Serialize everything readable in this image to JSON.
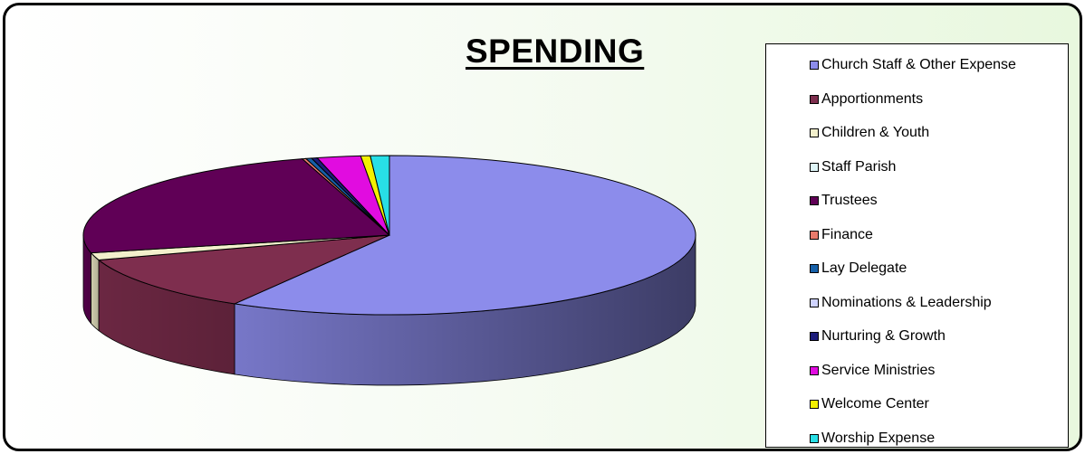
{
  "chart_data": {
    "type": "pie",
    "style": "3d-pie",
    "title": "SPENDING",
    "legend_position": "right",
    "slices": [
      {
        "label": "Church Staff & Other Expense",
        "value": 58.5,
        "color": "#8c8ceb"
      },
      {
        "label": "Apportionments",
        "value": 11.5,
        "color": "#7e2e4e"
      },
      {
        "label": "Children & Youth",
        "value": 1.5,
        "color": "#f3f0cc"
      },
      {
        "label": "Staff Parish",
        "value": 0.0,
        "color": "#dff6f8"
      },
      {
        "label": "Trustees",
        "value": 24.0,
        "color": "#600056"
      },
      {
        "label": "Finance",
        "value": 0.2,
        "color": "#e87b6c"
      },
      {
        "label": "Lay Delegate",
        "value": 0.3,
        "color": "#1660a8"
      },
      {
        "label": "Nominations & Leadership",
        "value": 0.0,
        "color": "#cfd3ff"
      },
      {
        "label": "Nurturing & Growth",
        "value": 0.3,
        "color": "#1c1c7a"
      },
      {
        "label": "Service Ministries",
        "value": 2.3,
        "color": "#e10ce0"
      },
      {
        "label": "Welcome Center",
        "value": 0.5,
        "color": "#f3f000"
      },
      {
        "label": "Worship Expense",
        "value": 1.0,
        "color": "#28dfe6"
      }
    ]
  }
}
